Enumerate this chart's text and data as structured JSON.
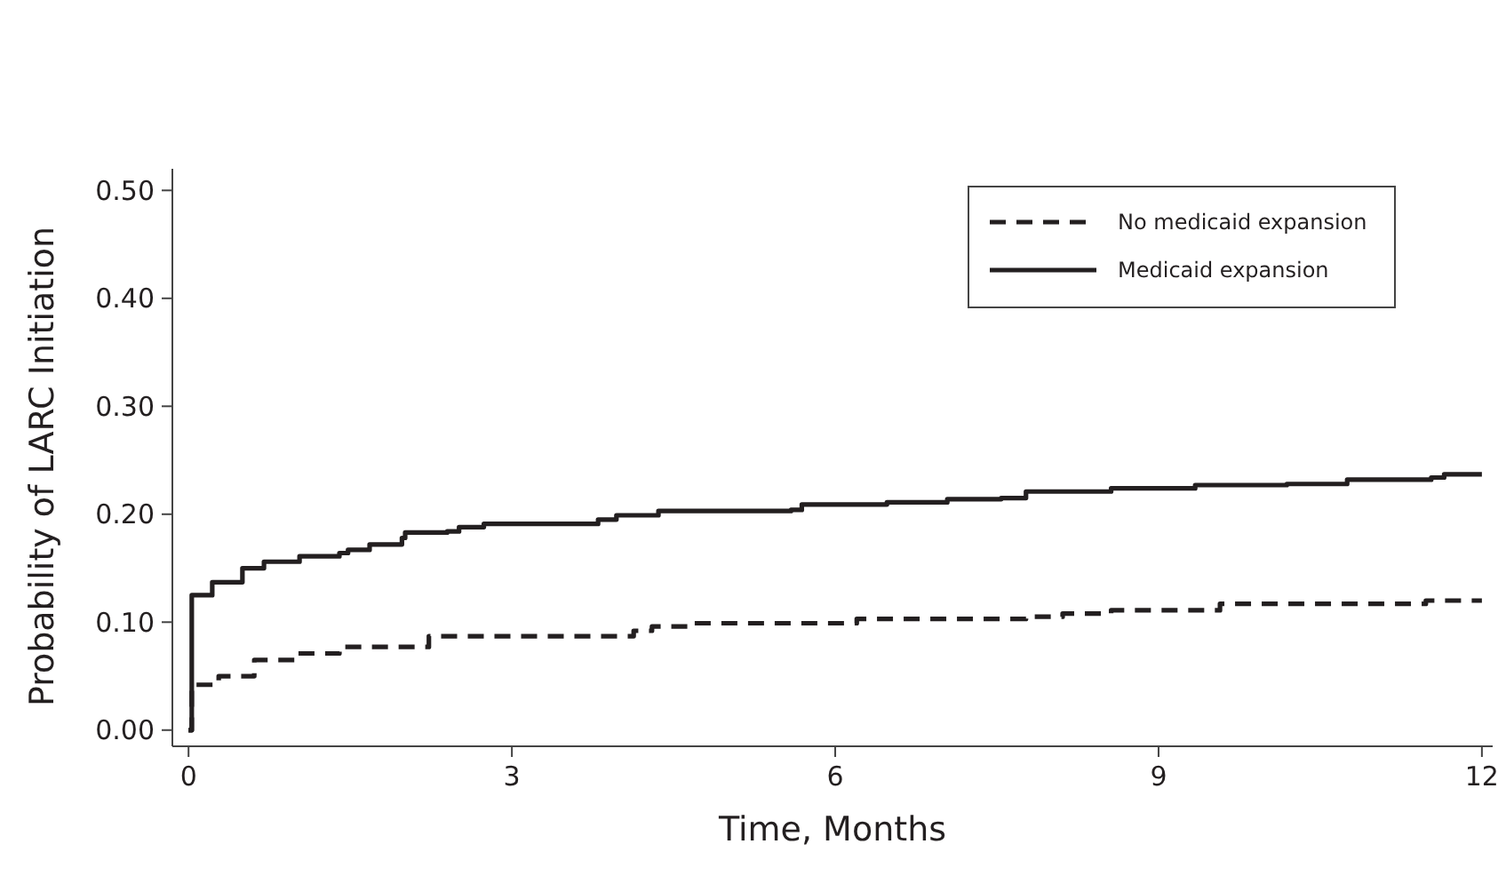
{
  "chart_data": {
    "type": "step",
    "xlabel": "Time, Months",
    "ylabel": "Probability of LARC Initiation",
    "xlim": [
      -0.15,
      12.1
    ],
    "ylim": [
      -0.015,
      0.52
    ],
    "xticks": [
      0,
      3,
      6,
      9,
      12
    ],
    "yticks": [
      {
        "value": 0,
        "label": "0.00"
      },
      {
        "value": 0.1,
        "label": "0.10"
      },
      {
        "value": 0.2,
        "label": "0.20"
      },
      {
        "value": 0.3,
        "label": "0.30"
      },
      {
        "value": 0.4,
        "label": "0.40"
      },
      {
        "value": 0.5,
        "label": "0.50"
      }
    ],
    "legend": "top right",
    "grid": false,
    "series": [
      {
        "name": "No medicaid expansion",
        "color": "#231f20",
        "line_style": "dashed",
        "x": [
          0,
          0.03,
          0.28,
          0.61,
          1.01,
          1.4,
          2.23,
          4.13,
          4.3,
          4.69,
          6.2,
          7.77,
          8.11,
          8.56,
          9.57,
          11.48,
          12
        ],
        "values": [
          0,
          0.042,
          0.05,
          0.065,
          0.071,
          0.077,
          0.087,
          0.092,
          0.096,
          0.099,
          0.103,
          0.105,
          0.108,
          0.111,
          0.117,
          0.12,
          0.12
        ]
      },
      {
        "name": "Medicaid expansion",
        "color": "#231f20",
        "line_style": "solid",
        "x": [
          0,
          0.03,
          0.22,
          0.5,
          0.7,
          1.03,
          1.4,
          1.48,
          1.68,
          1.98,
          2.01,
          2.4,
          2.51,
          2.74,
          3.8,
          3.97,
          4.36,
          5.59,
          5.69,
          6.48,
          7.04,
          7.54,
          7.77,
          8.56,
          9.34,
          10.19,
          10.75,
          11.53,
          11.65,
          12
        ],
        "values": [
          0,
          0.125,
          0.137,
          0.15,
          0.156,
          0.161,
          0.164,
          0.167,
          0.172,
          0.178,
          0.183,
          0.184,
          0.188,
          0.191,
          0.195,
          0.199,
          0.203,
          0.204,
          0.209,
          0.211,
          0.214,
          0.215,
          0.221,
          0.224,
          0.227,
          0.228,
          0.232,
          0.234,
          0.237,
          0.237
        ]
      }
    ]
  }
}
